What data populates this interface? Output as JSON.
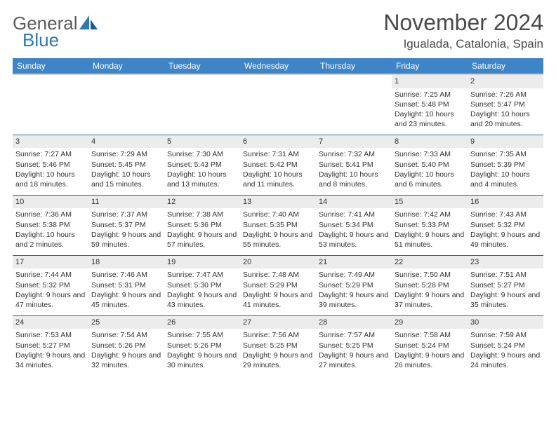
{
  "brand": {
    "part1": "General",
    "part2": "Blue"
  },
  "title": "November 2024",
  "location": "Igualada, Catalonia, Spain",
  "colors": {
    "header_bg": "#3d85c6",
    "row_divider": "#2d6aa3",
    "daynum_bg": "#ececec"
  },
  "weekdays": [
    "Sunday",
    "Monday",
    "Tuesday",
    "Wednesday",
    "Thursday",
    "Friday",
    "Saturday"
  ],
  "weeks": [
    [
      null,
      null,
      null,
      null,
      null,
      {
        "n": "1",
        "sr": "Sunrise: 7:25 AM",
        "ss": "Sunset: 5:48 PM",
        "dl": "Daylight: 10 hours and 23 minutes."
      },
      {
        "n": "2",
        "sr": "Sunrise: 7:26 AM",
        "ss": "Sunset: 5:47 PM",
        "dl": "Daylight: 10 hours and 20 minutes."
      }
    ],
    [
      {
        "n": "3",
        "sr": "Sunrise: 7:27 AM",
        "ss": "Sunset: 5:46 PM",
        "dl": "Daylight: 10 hours and 18 minutes."
      },
      {
        "n": "4",
        "sr": "Sunrise: 7:29 AM",
        "ss": "Sunset: 5:45 PM",
        "dl": "Daylight: 10 hours and 15 minutes."
      },
      {
        "n": "5",
        "sr": "Sunrise: 7:30 AM",
        "ss": "Sunset: 5:43 PM",
        "dl": "Daylight: 10 hours and 13 minutes."
      },
      {
        "n": "6",
        "sr": "Sunrise: 7:31 AM",
        "ss": "Sunset: 5:42 PM",
        "dl": "Daylight: 10 hours and 11 minutes."
      },
      {
        "n": "7",
        "sr": "Sunrise: 7:32 AM",
        "ss": "Sunset: 5:41 PM",
        "dl": "Daylight: 10 hours and 8 minutes."
      },
      {
        "n": "8",
        "sr": "Sunrise: 7:33 AM",
        "ss": "Sunset: 5:40 PM",
        "dl": "Daylight: 10 hours and 6 minutes."
      },
      {
        "n": "9",
        "sr": "Sunrise: 7:35 AM",
        "ss": "Sunset: 5:39 PM",
        "dl": "Daylight: 10 hours and 4 minutes."
      }
    ],
    [
      {
        "n": "10",
        "sr": "Sunrise: 7:36 AM",
        "ss": "Sunset: 5:38 PM",
        "dl": "Daylight: 10 hours and 2 minutes."
      },
      {
        "n": "11",
        "sr": "Sunrise: 7:37 AM",
        "ss": "Sunset: 5:37 PM",
        "dl": "Daylight: 9 hours and 59 minutes."
      },
      {
        "n": "12",
        "sr": "Sunrise: 7:38 AM",
        "ss": "Sunset: 5:36 PM",
        "dl": "Daylight: 9 hours and 57 minutes."
      },
      {
        "n": "13",
        "sr": "Sunrise: 7:40 AM",
        "ss": "Sunset: 5:35 PM",
        "dl": "Daylight: 9 hours and 55 minutes."
      },
      {
        "n": "14",
        "sr": "Sunrise: 7:41 AM",
        "ss": "Sunset: 5:34 PM",
        "dl": "Daylight: 9 hours and 53 minutes."
      },
      {
        "n": "15",
        "sr": "Sunrise: 7:42 AM",
        "ss": "Sunset: 5:33 PM",
        "dl": "Daylight: 9 hours and 51 minutes."
      },
      {
        "n": "16",
        "sr": "Sunrise: 7:43 AM",
        "ss": "Sunset: 5:32 PM",
        "dl": "Daylight: 9 hours and 49 minutes."
      }
    ],
    [
      {
        "n": "17",
        "sr": "Sunrise: 7:44 AM",
        "ss": "Sunset: 5:32 PM",
        "dl": "Daylight: 9 hours and 47 minutes."
      },
      {
        "n": "18",
        "sr": "Sunrise: 7:46 AM",
        "ss": "Sunset: 5:31 PM",
        "dl": "Daylight: 9 hours and 45 minutes."
      },
      {
        "n": "19",
        "sr": "Sunrise: 7:47 AM",
        "ss": "Sunset: 5:30 PM",
        "dl": "Daylight: 9 hours and 43 minutes."
      },
      {
        "n": "20",
        "sr": "Sunrise: 7:48 AM",
        "ss": "Sunset: 5:29 PM",
        "dl": "Daylight: 9 hours and 41 minutes."
      },
      {
        "n": "21",
        "sr": "Sunrise: 7:49 AM",
        "ss": "Sunset: 5:29 PM",
        "dl": "Daylight: 9 hours and 39 minutes."
      },
      {
        "n": "22",
        "sr": "Sunrise: 7:50 AM",
        "ss": "Sunset: 5:28 PM",
        "dl": "Daylight: 9 hours and 37 minutes."
      },
      {
        "n": "23",
        "sr": "Sunrise: 7:51 AM",
        "ss": "Sunset: 5:27 PM",
        "dl": "Daylight: 9 hours and 35 minutes."
      }
    ],
    [
      {
        "n": "24",
        "sr": "Sunrise: 7:53 AM",
        "ss": "Sunset: 5:27 PM",
        "dl": "Daylight: 9 hours and 34 minutes."
      },
      {
        "n": "25",
        "sr": "Sunrise: 7:54 AM",
        "ss": "Sunset: 5:26 PM",
        "dl": "Daylight: 9 hours and 32 minutes."
      },
      {
        "n": "26",
        "sr": "Sunrise: 7:55 AM",
        "ss": "Sunset: 5:26 PM",
        "dl": "Daylight: 9 hours and 30 minutes."
      },
      {
        "n": "27",
        "sr": "Sunrise: 7:56 AM",
        "ss": "Sunset: 5:25 PM",
        "dl": "Daylight: 9 hours and 29 minutes."
      },
      {
        "n": "28",
        "sr": "Sunrise: 7:57 AM",
        "ss": "Sunset: 5:25 PM",
        "dl": "Daylight: 9 hours and 27 minutes."
      },
      {
        "n": "29",
        "sr": "Sunrise: 7:58 AM",
        "ss": "Sunset: 5:24 PM",
        "dl": "Daylight: 9 hours and 26 minutes."
      },
      {
        "n": "30",
        "sr": "Sunrise: 7:59 AM",
        "ss": "Sunset: 5:24 PM",
        "dl": "Daylight: 9 hours and 24 minutes."
      }
    ]
  ]
}
